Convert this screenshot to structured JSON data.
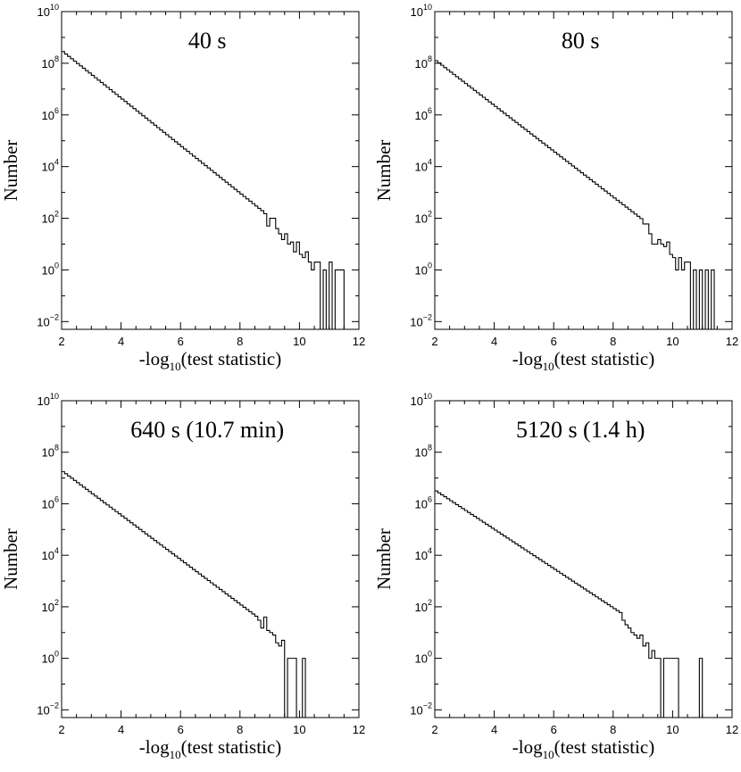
{
  "figure": {
    "colors": {
      "line": "#000000",
      "background": "#ffffff"
    }
  },
  "chart_data": [
    {
      "type": "histogram",
      "title": "40 s",
      "xlabel_prefix": "-log",
      "xlabel_sub": "10",
      "xlabel_suffix": "(test statistic)",
      "ylabel": "Number",
      "xlim": [
        2,
        12
      ],
      "ylim_log10": [
        -2.3,
        10
      ],
      "x_ticks": [
        "2",
        "4",
        "6",
        "8",
        "10",
        "12"
      ],
      "y_ticks": [
        {
          "base": "10",
          "exp": "−2"
        },
        {
          "base": "10",
          "exp": "0"
        },
        {
          "base": "10",
          "exp": "2"
        },
        {
          "base": "10",
          "exp": "4"
        },
        {
          "base": "10",
          "exp": "6"
        },
        {
          "base": "10",
          "exp": "8"
        },
        {
          "base": "10",
          "exp": "10"
        }
      ],
      "bin_width": 0.1,
      "smooth": {
        "x_start": 2.0,
        "x_end": 8.8,
        "log_y_start": 8.45,
        "log_y_end": 2.2
      },
      "tail_x": [
        8.8,
        8.9,
        9.0,
        9.1,
        9.2,
        9.3,
        9.4,
        9.5,
        9.6,
        9.7,
        9.8,
        9.9,
        10.0,
        10.1,
        10.2,
        10.3,
        10.4,
        10.5,
        10.6,
        10.7,
        10.8,
        10.9,
        11.0,
        11.1,
        11.2,
        11.3,
        11.4
      ],
      "tail_counts": [
        150,
        50,
        100,
        100,
        40,
        25,
        15,
        25,
        10,
        12,
        5,
        12,
        4,
        3,
        5,
        2,
        1,
        2,
        2,
        0,
        1,
        0,
        2,
        0,
        1,
        1,
        1
      ]
    },
    {
      "type": "histogram",
      "title": "80 s",
      "xlabel_prefix": "-log",
      "xlabel_sub": "10",
      "xlabel_suffix": "(test statistic)",
      "ylabel": "Number",
      "xlim": [
        2,
        12
      ],
      "ylim_log10": [
        -2.3,
        10
      ],
      "x_ticks": [
        "2",
        "4",
        "6",
        "8",
        "10",
        "12"
      ],
      "y_ticks": [
        {
          "base": "10",
          "exp": "−2"
        },
        {
          "base": "10",
          "exp": "0"
        },
        {
          "base": "10",
          "exp": "2"
        },
        {
          "base": "10",
          "exp": "4"
        },
        {
          "base": "10",
          "exp": "6"
        },
        {
          "base": "10",
          "exp": "8"
        },
        {
          "base": "10",
          "exp": "10"
        }
      ],
      "bin_width": 0.1,
      "smooth": {
        "x_start": 2.0,
        "x_end": 9.0,
        "log_y_start": 8.1,
        "log_y_end": 1.9
      },
      "tail_x": [
        9.0,
        9.1,
        9.2,
        9.3,
        9.4,
        9.5,
        9.6,
        9.7,
        9.8,
        9.9,
        10.0,
        10.1,
        10.2,
        10.3,
        10.4,
        10.5,
        10.6,
        10.7,
        10.8,
        10.9,
        11.0,
        11.1,
        11.2,
        11.3
      ],
      "tail_counts": [
        60,
        60,
        25,
        10,
        10,
        15,
        10,
        8,
        12,
        4,
        3,
        1,
        3,
        1,
        2,
        2,
        0,
        1,
        0,
        1,
        0,
        1,
        0,
        1
      ]
    },
    {
      "type": "histogram",
      "title": "640 s  (10.7 min)",
      "xlabel_prefix": "-log",
      "xlabel_sub": "10",
      "xlabel_suffix": "(test statistic)",
      "ylabel": "Number",
      "xlim": [
        2,
        12
      ],
      "ylim_log10": [
        -2.3,
        10
      ],
      "x_ticks": [
        "2",
        "4",
        "6",
        "8",
        "10",
        "12"
      ],
      "y_ticks": [
        {
          "base": "10",
          "exp": "−2"
        },
        {
          "base": "10",
          "exp": "0"
        },
        {
          "base": "10",
          "exp": "2"
        },
        {
          "base": "10",
          "exp": "4"
        },
        {
          "base": "10",
          "exp": "6"
        },
        {
          "base": "10",
          "exp": "8"
        },
        {
          "base": "10",
          "exp": "10"
        }
      ],
      "bin_width": 0.1,
      "smooth": {
        "x_start": 2.0,
        "x_end": 8.6,
        "log_y_start": 7.25,
        "log_y_end": 1.55
      },
      "tail_x": [
        8.6,
        8.7,
        8.8,
        8.9,
        9.0,
        9.1,
        9.2,
        9.3,
        9.4,
        9.5,
        9.6,
        9.7,
        9.8,
        9.9,
        10.0,
        10.1,
        10.2
      ],
      "tail_counts": [
        30,
        15,
        40,
        12,
        10,
        8,
        4,
        3,
        5,
        0,
        1,
        1,
        1,
        0,
        0,
        1,
        0
      ]
    },
    {
      "type": "histogram",
      "title": "5120 s  (1.4 h)",
      "xlabel_prefix": "-log",
      "xlabel_sub": "10",
      "xlabel_suffix": "(test statistic)",
      "ylabel": "Number",
      "xlim": [
        2,
        12
      ],
      "ylim_log10": [
        -2.3,
        10
      ],
      "x_ticks": [
        "2",
        "4",
        "6",
        "8",
        "10",
        "12"
      ],
      "y_ticks": [
        {
          "base": "10",
          "exp": "−2"
        },
        {
          "base": "10",
          "exp": "0"
        },
        {
          "base": "10",
          "exp": "2"
        },
        {
          "base": "10",
          "exp": "4"
        },
        {
          "base": "10",
          "exp": "6"
        },
        {
          "base": "10",
          "exp": "8"
        },
        {
          "base": "10",
          "exp": "10"
        }
      ],
      "bin_width": 0.1,
      "smooth": {
        "x_start": 2.0,
        "x_end": 8.3,
        "log_y_start": 6.5,
        "log_y_end": 1.7
      },
      "tail_x": [
        8.3,
        8.4,
        8.5,
        8.6,
        8.7,
        8.8,
        8.9,
        9.0,
        9.1,
        9.2,
        9.3,
        9.4,
        9.5,
        9.6,
        9.7,
        9.8,
        9.9,
        10.0,
        10.1,
        10.2,
        10.3,
        10.4,
        10.5,
        10.6,
        10.7,
        10.8,
        10.9,
        11.0
      ],
      "tail_counts": [
        30,
        20,
        15,
        10,
        8,
        6,
        8,
        3,
        4,
        1,
        2,
        1,
        1,
        0,
        1,
        1,
        1,
        1,
        1,
        0,
        0,
        0,
        0,
        0,
        0,
        0,
        1,
        0
      ]
    }
  ]
}
